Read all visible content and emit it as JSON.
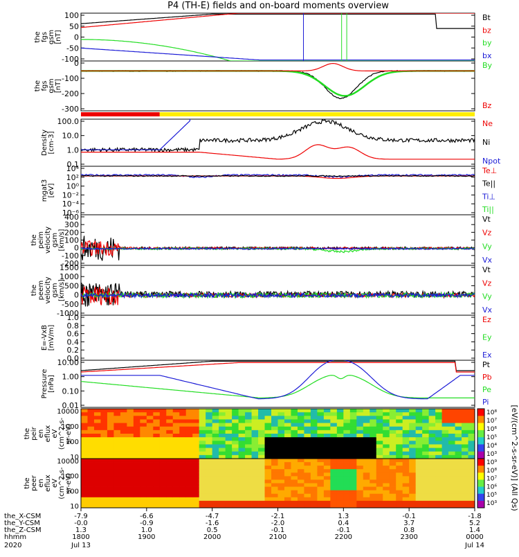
{
  "title": "P4 (TH-E) fields and on-board moments overview",
  "colors": {
    "black": "#000000",
    "red": "#ee0000",
    "green": "#22dd22",
    "blue": "#1a1ad6",
    "yellow": "#ffee00"
  },
  "chart_data": [
    {
      "type": "line",
      "name": "fgs-gsm",
      "ylabel": [
        "the",
        "fgs",
        "gsm",
        "[nT]"
      ],
      "yticks": [
        "100",
        "50",
        "0",
        "-50",
        "-100"
      ],
      "ylim": [
        -100,
        100
      ],
      "legend": [
        {
          "label": "Bt",
          "color": "black"
        },
        {
          "label": "bz",
          "color": "red"
        },
        {
          "label": "by",
          "color": "green"
        },
        {
          "label": "bx",
          "color": "blue"
        }
      ]
    },
    {
      "type": "line",
      "name": "fgs-gsm-2",
      "ylabel": [
        "the",
        "fgs",
        "gsm",
        "[nT]"
      ],
      "yticks": [
        "0",
        "-100",
        "-200",
        "-300"
      ],
      "ylim": [
        -350,
        50
      ],
      "legend": [
        {
          "label": "By",
          "color": "green"
        },
        {
          "label": "Bz",
          "color": "red"
        }
      ]
    },
    {
      "type": "bar",
      "name": "mode-bar",
      "segments": [
        {
          "from": "1800",
          "to": "1853",
          "color": "red"
        },
        {
          "from": "1853",
          "to": "0000",
          "color": "yellow"
        }
      ]
    },
    {
      "type": "line",
      "name": "density",
      "scale": "log",
      "ylabel": [
        "Density",
        "[cm-3]"
      ],
      "yticks": [
        "100.0",
        "10.0",
        "1.0",
        "0.1"
      ],
      "legend": [
        {
          "label": "Ne",
          "color": "red"
        },
        {
          "label": "Ni",
          "color": "black"
        },
        {
          "label": "Npot",
          "color": "blue"
        }
      ]
    },
    {
      "type": "line",
      "name": "temperature",
      "scale": "log",
      "ylabel": [
        "mgat3",
        "[eV]"
      ],
      "yticks": [
        "10⁴",
        "10²",
        "10⁰",
        "10⁻²",
        "10⁻⁴",
        "10⁻⁶"
      ],
      "legend": [
        {
          "label": "Te⊥",
          "color": "red"
        },
        {
          "label": "Te||",
          "color": "black"
        },
        {
          "label": "Ti⊥",
          "color": "blue"
        },
        {
          "label": "Ti||",
          "color": "green"
        }
      ]
    },
    {
      "type": "line",
      "name": "peim-velocity",
      "ylabel": [
        "the",
        "peim",
        "velocity",
        "gsm",
        "[km/s]"
      ],
      "yticks": [
        "400",
        "300",
        "200",
        "100",
        "0",
        "-100",
        "-200"
      ],
      "ylim": [
        -200,
        400
      ],
      "legend": [
        {
          "label": "Vt",
          "color": "black"
        },
        {
          "label": "Vz",
          "color": "red"
        },
        {
          "label": "Vy",
          "color": "green"
        },
        {
          "label": "Vx",
          "color": "blue"
        }
      ]
    },
    {
      "type": "line",
      "name": "peem-velocity",
      "ylabel": [
        "the",
        "peem",
        "velocity",
        "gsm",
        "[km/s]"
      ],
      "yticks": [
        "1500",
        "1000",
        "500",
        "0",
        "-500",
        "-1000"
      ],
      "ylim": [
        -1000,
        1500
      ],
      "legend": [
        {
          "label": "Vt",
          "color": "black"
        },
        {
          "label": "Vz",
          "color": "red"
        },
        {
          "label": "Vy",
          "color": "green"
        },
        {
          "label": "Vx",
          "color": "blue"
        }
      ]
    },
    {
      "type": "line",
      "name": "efield",
      "ylabel": [
        "E=-VxB",
        "[mV/m]"
      ],
      "yticks": [
        "1.0",
        "0.8",
        "0.6",
        "0.4",
        "0.2",
        "0.0"
      ],
      "ylim": [
        0,
        1
      ],
      "legend": [
        {
          "label": "Ez",
          "color": "red"
        },
        {
          "label": "Ey",
          "color": "green"
        },
        {
          "label": "Ex",
          "color": "blue"
        }
      ]
    },
    {
      "type": "line",
      "name": "pressure",
      "scale": "log",
      "ylabel": [
        "Pressure",
        "[nPa]"
      ],
      "yticks": [
        "10.00",
        "1.00",
        "0.10",
        "0.01"
      ],
      "legend": [
        {
          "label": "Pt",
          "color": "black"
        },
        {
          "label": "Pb",
          "color": "red"
        },
        {
          "label": "Pe",
          "color": "green"
        },
        {
          "label": "Pi",
          "color": "blue"
        }
      ]
    },
    {
      "type": "heatmap",
      "name": "peir-spectrogram",
      "ylabel": [
        "the",
        "peir",
        "en",
        "eflux",
        "eV",
        "(cm^2-s-",
        "sr-eV)"
      ],
      "yticks": [
        "10000",
        "1000",
        "100",
        "10"
      ],
      "colorbar_ticks": [
        "10⁸",
        "10⁷",
        "10⁶",
        "10⁵",
        "10⁴",
        "10³"
      ]
    },
    {
      "type": "heatmap",
      "name": "peer-spectrogram",
      "ylabel": [
        "the",
        "peer",
        "en",
        "eflux",
        "eV",
        "(cm^2-s-",
        "sr-eV)"
      ],
      "yticks": [
        "10000",
        "1000",
        "100",
        "10"
      ],
      "colorbar_ticks": [
        "10⁹",
        "10⁸",
        "10⁷",
        "10⁶",
        "10⁵",
        "10³"
      ]
    }
  ],
  "colorbar_label": "[eV/(cm^2-s-sr-eV)] (All Qs)",
  "xaxis": {
    "rows": [
      {
        "label": "the_X-CSM",
        "values": [
          "-7.9",
          "-6.6",
          "-4.7",
          "-2.1",
          "1.3",
          "-0.1",
          "-1.8"
        ]
      },
      {
        "label": "the_Y-CSM",
        "values": [
          "-0.0",
          "-0.9",
          "-1.6",
          "-2.0",
          "0.4",
          "3.7",
          "5.2"
        ]
      },
      {
        "label": "the_Z-CSM",
        "values": [
          "1.3",
          "1.0",
          "0.5",
          "-0.1",
          "-0.1",
          "0.8",
          "1.4"
        ]
      },
      {
        "label": "hhmm",
        "values": [
          "1800",
          "1900",
          "2000",
          "2100",
          "2200",
          "2300",
          "0000"
        ]
      }
    ],
    "year": "2020",
    "dates": [
      {
        "text": "Jul 13",
        "at": "1800"
      },
      {
        "text": "Jul 14",
        "at": "0000"
      }
    ]
  }
}
